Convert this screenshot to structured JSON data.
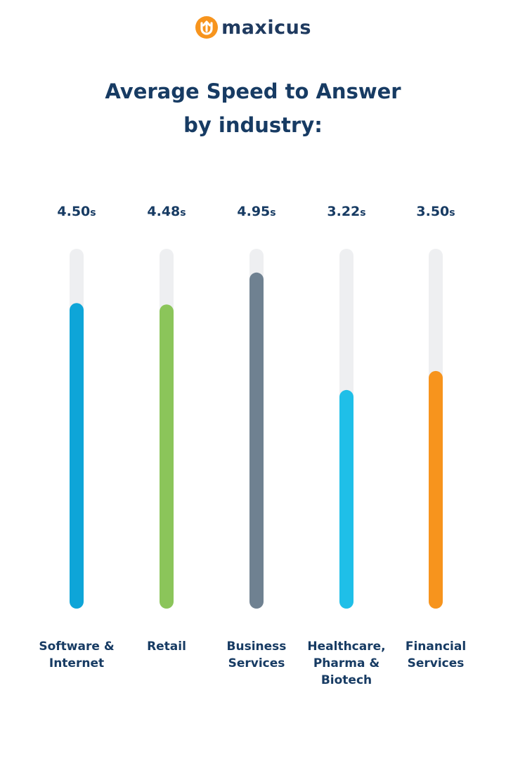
{
  "brand": {
    "name": "maxicus",
    "colors": {
      "orange": "#F7941D",
      "navy": "#1F3A5F"
    }
  },
  "header": {
    "title_line1": "Average Speed to Answer",
    "title_line2": "by industry:"
  },
  "chart_data": {
    "type": "bar",
    "orientation": "vertical",
    "title": "Average Speed to Answer by industry:",
    "categories": [
      "Software & Internet",
      "Retail",
      "Business Services",
      "Healthcare, Pharma & Biotech",
      "Financial Services"
    ],
    "category_lines": [
      [
        "Software &",
        "Internet"
      ],
      [
        "Retail"
      ],
      [
        "Business",
        "Services"
      ],
      [
        "Healthcare,",
        "Pharma &",
        "Biotech"
      ],
      [
        "Financial",
        "Services"
      ]
    ],
    "values": [
      4.5,
      4.48,
      4.95,
      3.22,
      3.5
    ],
    "value_labels": [
      "4.50",
      "4.48",
      "4.95",
      "3.22",
      "3.50"
    ],
    "unit": "s",
    "bar_colors": [
      "#0EA5D8",
      "#8BC55A",
      "#6F8191",
      "#1FBFE8",
      "#F7941D"
    ],
    "track_color": "#EEEFF1",
    "grid": false,
    "legend": "none",
    "xlabel": "",
    "ylabel": ""
  }
}
